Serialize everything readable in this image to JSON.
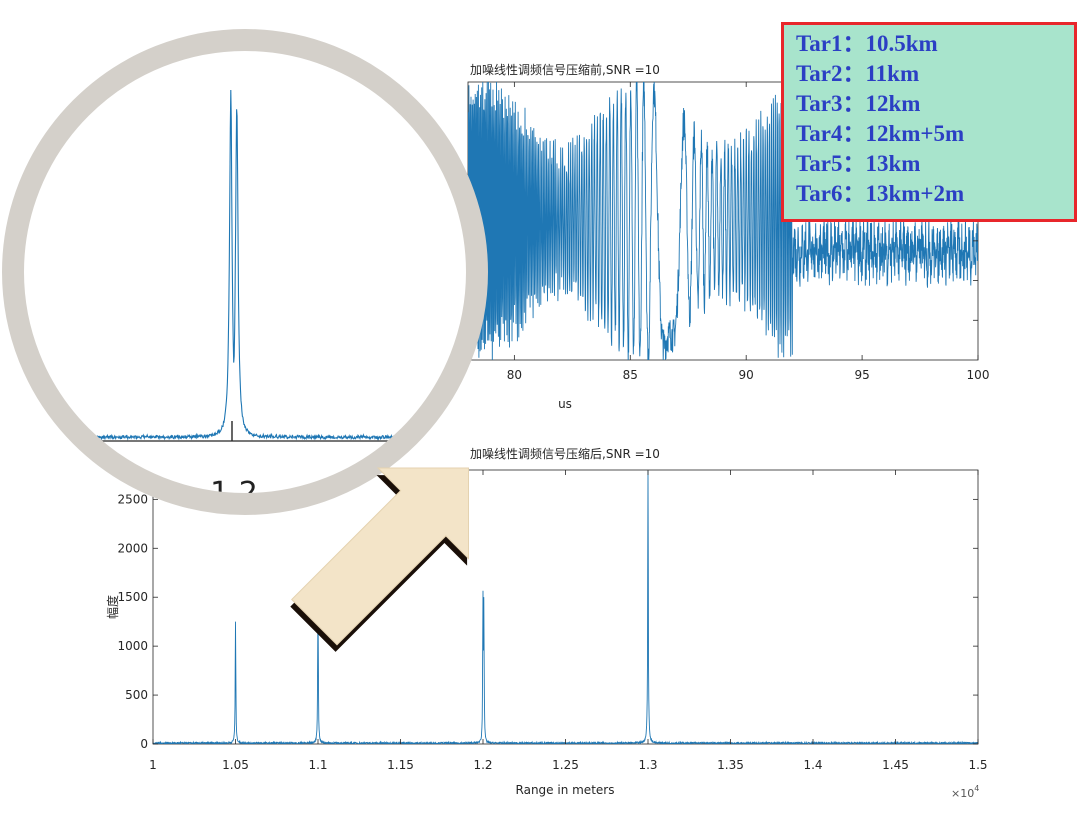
{
  "chart_data": [
    {
      "type": "line",
      "title": "加噪线性调频信号压缩前,SNR =10",
      "xlabel": "us",
      "ylabel": "",
      "xlim": [
        78,
        100
      ],
      "ylim": [
        -1,
        1
      ],
      "x_ticks": [
        "80",
        "85",
        "90",
        "95",
        "100"
      ],
      "series": [
        {
          "values_description_free": true,
          "x_start": 78,
          "x_end": 100
        }
      ],
      "grid": false
    },
    {
      "type": "line",
      "title": "加噪线性调频信号压缩后,SNR =10",
      "xlabel": "Range in meters",
      "ylabel": "幅度",
      "x_exponent": "×10",
      "x_exponent_power": "4",
      "xlim": [
        1.0,
        1.5
      ],
      "ylim": [
        0,
        2800
      ],
      "x_ticks": [
        "1",
        "1.05",
        "1.1",
        "1.15",
        "1.2",
        "1.25",
        "1.3",
        "1.35",
        "1.4",
        "1.45",
        "1.5"
      ],
      "y_ticks": [
        "0",
        "500",
        "1000",
        "1500",
        "2000",
        "2500"
      ],
      "series": [
        {
          "x": [
            1.05,
            1.1,
            1.2,
            1.2005,
            1.3,
            1.3002
          ],
          "values": [
            1240,
            1480,
            1560,
            1500,
            2790,
            500
          ]
        }
      ],
      "grid": false
    },
    {
      "type": "line",
      "title": "",
      "xlabel": "",
      "ylabel": "",
      "x_ticks": [
        "1.2"
      ],
      "series": [
        {
          "x": [
            1.1999,
            1.2004
          ],
          "values": [
            1560,
            1500
          ]
        }
      ]
    }
  ],
  "targets": {
    "lines": [
      "Tar1：10.5km",
      "Tar2：11km",
      "Tar3：12km",
      "Tar4：12km+5m",
      "Tar5：13km",
      "Tar6：13km+2m"
    ],
    "text_color": "#2b3fc4",
    "border_color": "#e8262b",
    "background_color": "#a8e4cc"
  },
  "colors": {
    "line": "#1f77b4",
    "axis": "#262626",
    "magnifier_ring": "#d4d0ca",
    "arrow_fill": "#f3e4c8"
  },
  "callout_arrow": {
    "icon": "arrow-up-left-icon"
  }
}
